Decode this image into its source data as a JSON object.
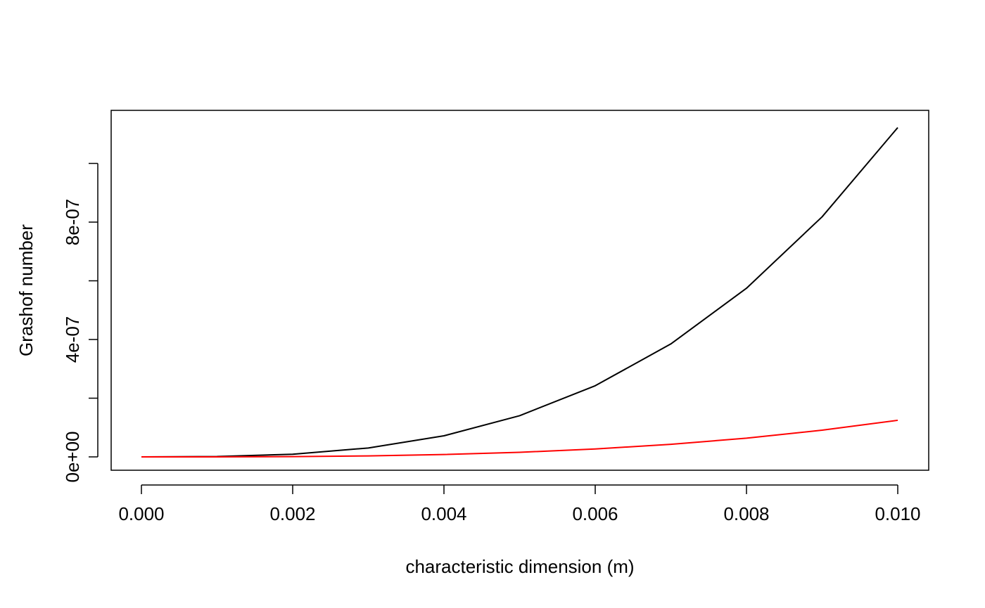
{
  "chart_data": {
    "type": "line",
    "title": "",
    "xlabel": "characteristic dimension (m)",
    "ylabel": "Grashof number",
    "xlim": [
      0,
      0.01
    ],
    "ylim": [
      0,
      1.1e-06
    ],
    "grid": false,
    "legend": "none",
    "x_ticks": [
      0.0,
      0.002,
      0.004,
      0.006,
      0.008,
      0.01
    ],
    "x_tick_labels": [
      "0.000",
      "0.002",
      "0.004",
      "0.006",
      "0.008",
      "0.010"
    ],
    "y_ticks": [
      0,
      2e-07,
      4e-07,
      6e-07,
      8e-07,
      1e-06
    ],
    "y_tick_labels": [
      "0e+00",
      "",
      "4e-07",
      "",
      "8e-07",
      ""
    ],
    "x": [
      0.0,
      0.001,
      0.002,
      0.003,
      0.004,
      0.005,
      0.006,
      0.007,
      0.008,
      0.009,
      0.01
    ],
    "series": [
      {
        "color": "#000000",
        "values": [
          0,
          1.13e-09,
          9e-09,
          3.03e-08,
          7.18e-08,
          1.403e-07,
          2.424e-07,
          3.849e-07,
          5.746e-07,
          8.181e-07,
          1.1222e-06
        ]
      },
      {
        "color": "#ff0000",
        "values": [
          0,
          1.25e-10,
          1e-09,
          3.4e-09,
          8e-09,
          1.56e-08,
          2.69e-08,
          4.28e-08,
          6.38e-08,
          9.09e-08,
          1.247e-07
        ]
      }
    ]
  }
}
